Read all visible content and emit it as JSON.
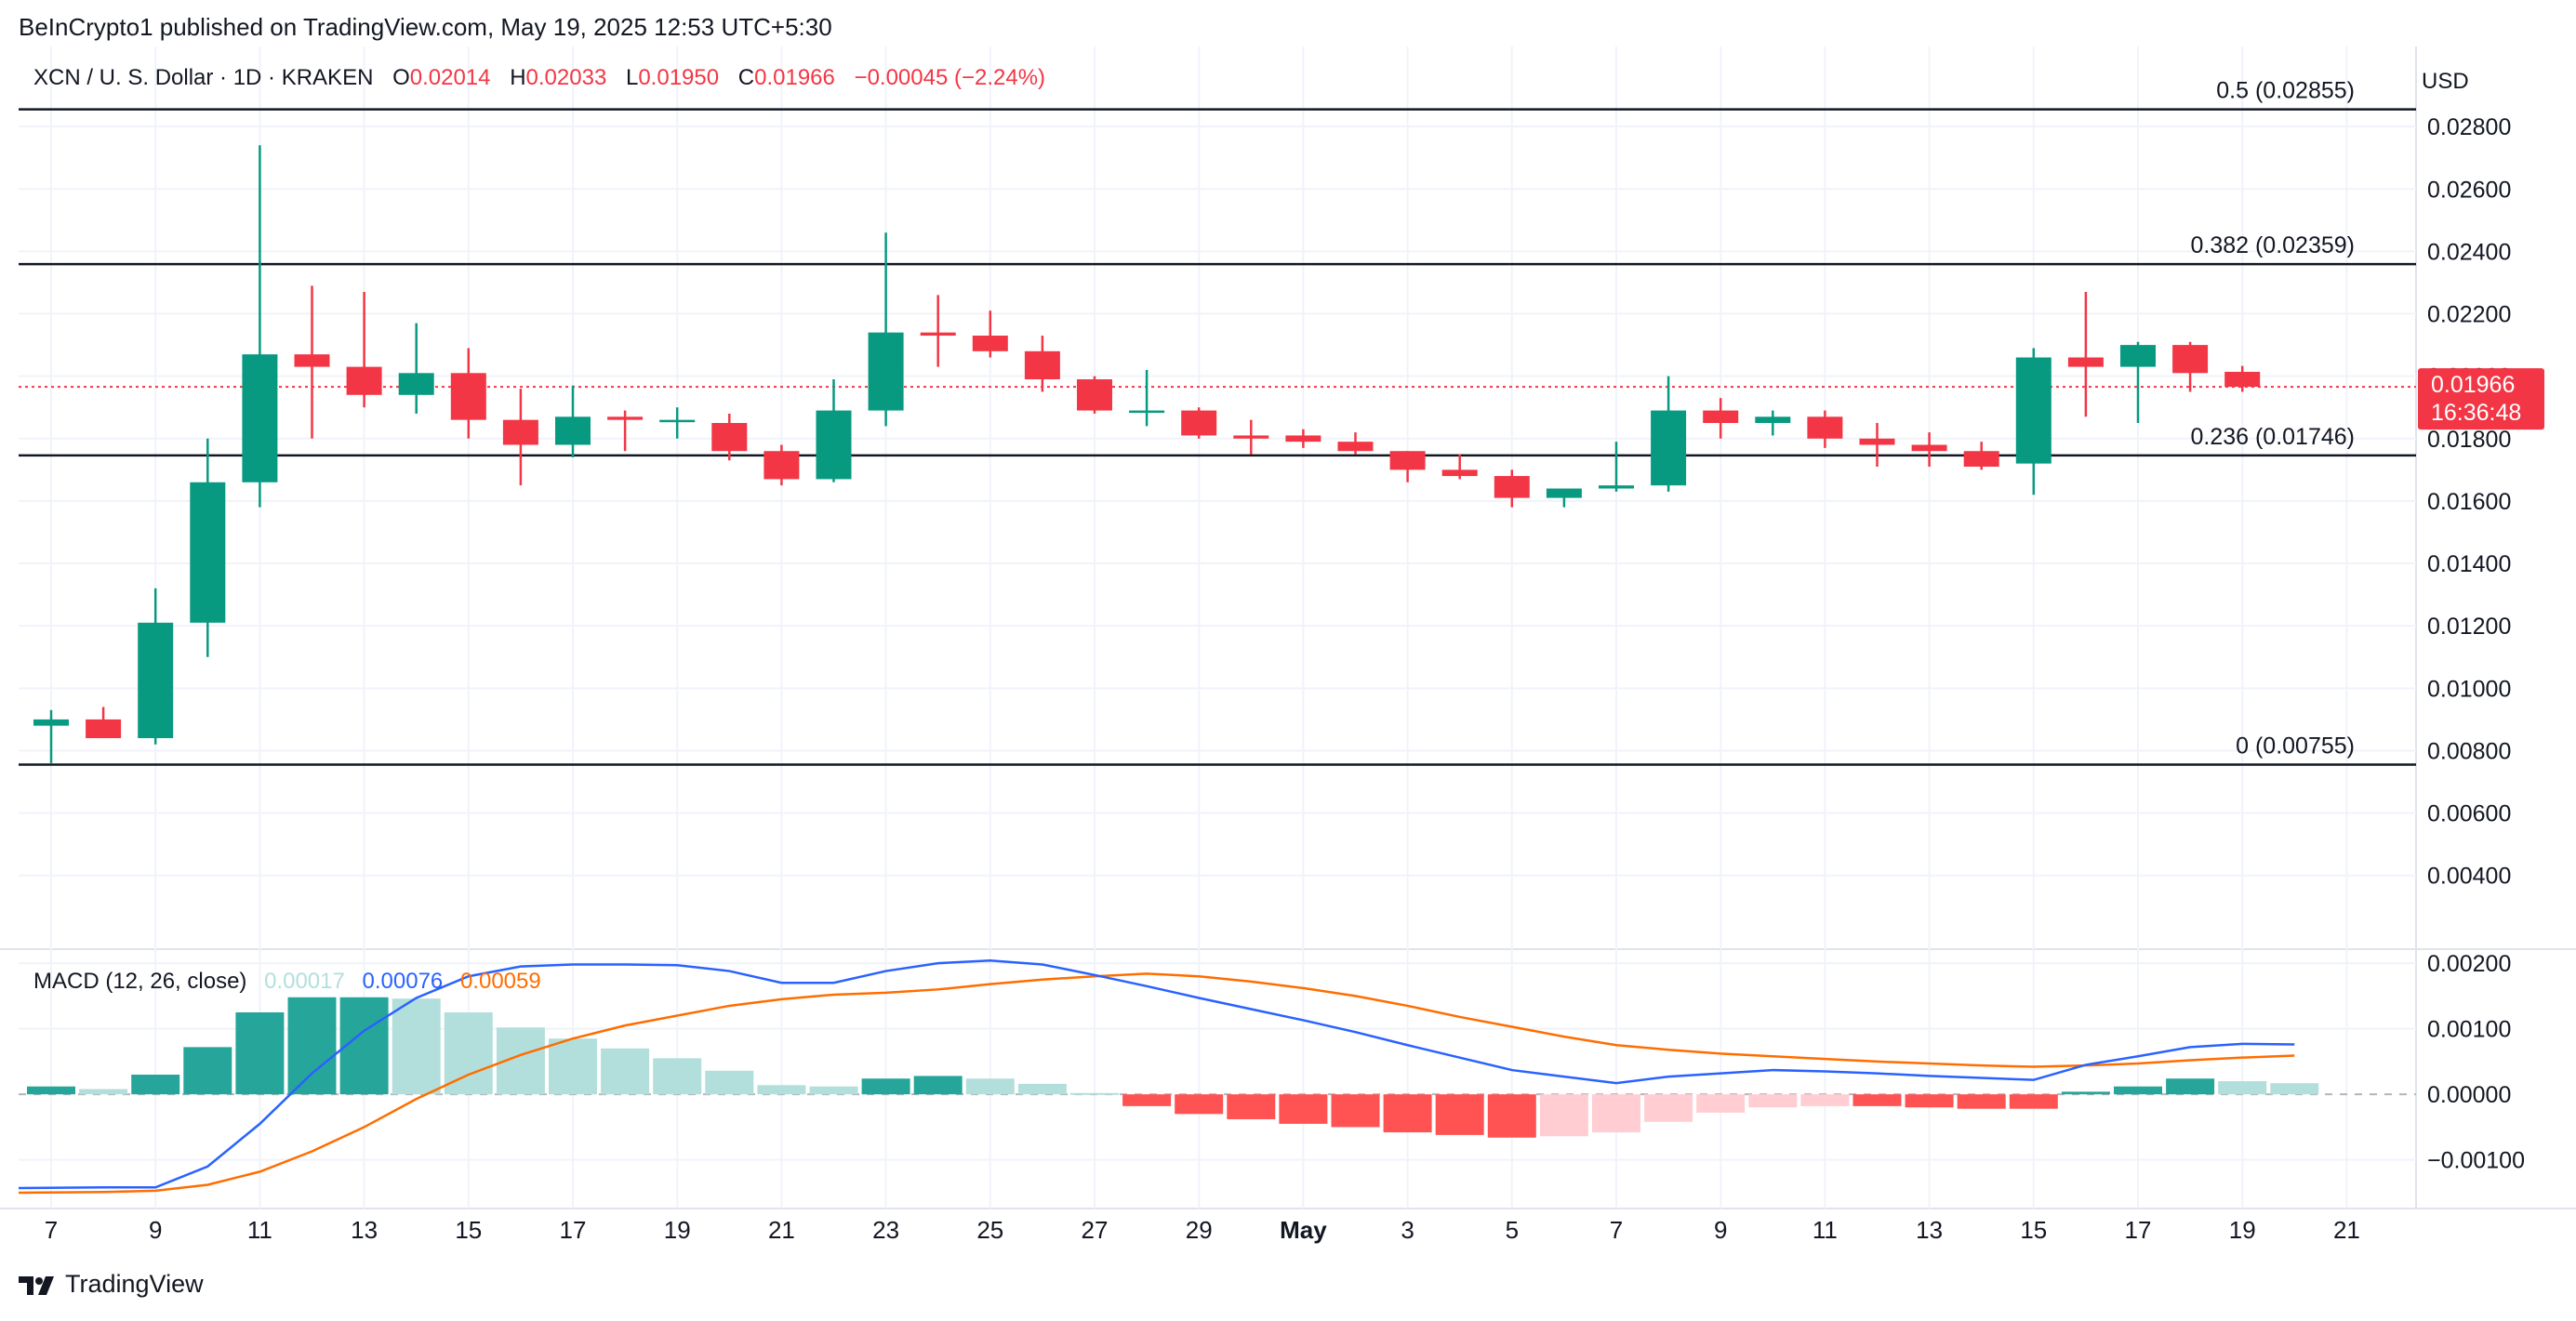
{
  "publisher_line": "BeInCrypto1 published on TradingView.com, May 19, 2025 12:53 UTC+5:30",
  "legend": {
    "symbol": "XCN / U. S. Dollar · 1D · KRAKEN",
    "open_label": "O",
    "open": "0.02014",
    "high_label": "H",
    "high": "0.02033",
    "low_label": "L",
    "low": "0.01950",
    "close_label": "C",
    "close": "0.01966",
    "change": "−0.00045 (−2.24%)"
  },
  "currency": "USD",
  "price_tag": {
    "price": "0.01966",
    "countdown": "16:36:48"
  },
  "macd_legend": {
    "title": "MACD (12, 26, close)",
    "histogram": "0.00017",
    "macd": "0.00076",
    "signal": "0.00059"
  },
  "brand": "TradingView",
  "colors": {
    "up": "#089981",
    "down": "#f23645",
    "hist_up_strong": "#26a69a",
    "hist_up_weak": "#b2dfdb",
    "hist_down_strong": "#ff5252",
    "hist_down_weak": "#ffcdd2",
    "macd": "#2962ff",
    "signal": "#ff6d00"
  },
  "icons": [
    "tradingview-logo-icon"
  ],
  "chart_data": [
    {
      "type": "candlestick",
      "x_tick_labels": [
        "7",
        "9",
        "11",
        "13",
        "15",
        "17",
        "19",
        "21",
        "23",
        "25",
        "27",
        "29",
        "May",
        "3",
        "5",
        "7",
        "9",
        "11",
        "13",
        "15",
        "17",
        "19",
        "21"
      ],
      "price_ticks": [
        "0.02800",
        "0.02600",
        "0.02400",
        "0.02200",
        "0.02000",
        "0.01800",
        "0.01600",
        "0.01400",
        "0.01200",
        "0.01000",
        "0.00800",
        "0.00600",
        "0.00400"
      ],
      "ylim": [
        0.0028,
        0.0286
      ],
      "fib_levels": [
        {
          "label": "0.5 (0.02855)",
          "value": 0.02855
        },
        {
          "label": "0.382 (0.02359)",
          "value": 0.02359
        },
        {
          "label": "0.236 (0.01746)",
          "value": 0.01746
        },
        {
          "label": "0 (0.00755)",
          "value": 0.00755
        }
      ],
      "last_price": 0.01966,
      "candles": [
        {
          "date": "Apr 7",
          "o": 0.0088,
          "h": 0.0093,
          "l": 0.0076,
          "c": 0.009
        },
        {
          "date": "Apr 8",
          "o": 0.009,
          "h": 0.0094,
          "l": 0.0084,
          "c": 0.0084
        },
        {
          "date": "Apr 9",
          "o": 0.0084,
          "h": 0.0132,
          "l": 0.0082,
          "c": 0.0121
        },
        {
          "date": "Apr 10",
          "o": 0.0121,
          "h": 0.018,
          "l": 0.011,
          "c": 0.0166
        },
        {
          "date": "Apr 11",
          "o": 0.0166,
          "h": 0.0274,
          "l": 0.0158,
          "c": 0.0207
        },
        {
          "date": "Apr 12",
          "o": 0.0207,
          "h": 0.0229,
          "l": 0.018,
          "c": 0.0203
        },
        {
          "date": "Apr 13",
          "o": 0.0203,
          "h": 0.0227,
          "l": 0.019,
          "c": 0.0194
        },
        {
          "date": "Apr 14",
          "o": 0.0194,
          "h": 0.0217,
          "l": 0.0188,
          "c": 0.0201
        },
        {
          "date": "Apr 15",
          "o": 0.0201,
          "h": 0.0209,
          "l": 0.018,
          "c": 0.0186
        },
        {
          "date": "Apr 16",
          "o": 0.0186,
          "h": 0.0196,
          "l": 0.0165,
          "c": 0.0178
        },
        {
          "date": "Apr 17",
          "o": 0.0178,
          "h": 0.0197,
          "l": 0.0174,
          "c": 0.0187
        },
        {
          "date": "Apr 18",
          "o": 0.0187,
          "h": 0.0189,
          "l": 0.0176,
          "c": 0.0186
        },
        {
          "date": "Apr 19",
          "o": 0.0186,
          "h": 0.019,
          "l": 0.018,
          "c": 0.0186
        },
        {
          "date": "Apr 20",
          "o": 0.0185,
          "h": 0.0188,
          "l": 0.0173,
          "c": 0.0176
        },
        {
          "date": "Apr 21",
          "o": 0.0176,
          "h": 0.0178,
          "l": 0.0165,
          "c": 0.0167
        },
        {
          "date": "Apr 22",
          "o": 0.0167,
          "h": 0.0199,
          "l": 0.0166,
          "c": 0.0189
        },
        {
          "date": "Apr 23",
          "o": 0.0189,
          "h": 0.0246,
          "l": 0.0184,
          "c": 0.0214
        },
        {
          "date": "Apr 24",
          "o": 0.0214,
          "h": 0.0226,
          "l": 0.0203,
          "c": 0.0213
        },
        {
          "date": "Apr 25",
          "o": 0.0213,
          "h": 0.0221,
          "l": 0.0206,
          "c": 0.0208
        },
        {
          "date": "Apr 26",
          "o": 0.0208,
          "h": 0.0213,
          "l": 0.0195,
          "c": 0.0199
        },
        {
          "date": "Apr 27",
          "o": 0.0199,
          "h": 0.02,
          "l": 0.0188,
          "c": 0.0189
        },
        {
          "date": "Apr 28",
          "o": 0.0189,
          "h": 0.0202,
          "l": 0.0184,
          "c": 0.0189
        },
        {
          "date": "Apr 29",
          "o": 0.0189,
          "h": 0.019,
          "l": 0.018,
          "c": 0.0181
        },
        {
          "date": "Apr 30",
          "o": 0.0181,
          "h": 0.0186,
          "l": 0.0175,
          "c": 0.018
        },
        {
          "date": "May 1",
          "o": 0.0181,
          "h": 0.0183,
          "l": 0.0177,
          "c": 0.0179
        },
        {
          "date": "May 2",
          "o": 0.0179,
          "h": 0.0182,
          "l": 0.0175,
          "c": 0.0176
        },
        {
          "date": "May 3",
          "o": 0.0176,
          "h": 0.0176,
          "l": 0.0166,
          "c": 0.017
        },
        {
          "date": "May 4",
          "o": 0.017,
          "h": 0.0175,
          "l": 0.0167,
          "c": 0.0168
        },
        {
          "date": "May 5",
          "o": 0.0168,
          "h": 0.017,
          "l": 0.0158,
          "c": 0.0161
        },
        {
          "date": "May 6",
          "o": 0.0161,
          "h": 0.0164,
          "l": 0.0158,
          "c": 0.0164
        },
        {
          "date": "May 7",
          "o": 0.0164,
          "h": 0.0179,
          "l": 0.0163,
          "c": 0.0165
        },
        {
          "date": "May 8",
          "o": 0.0165,
          "h": 0.02,
          "l": 0.0163,
          "c": 0.0189
        },
        {
          "date": "May 9",
          "o": 0.0189,
          "h": 0.0193,
          "l": 0.018,
          "c": 0.0185
        },
        {
          "date": "May 10",
          "o": 0.0185,
          "h": 0.0189,
          "l": 0.0181,
          "c": 0.0187
        },
        {
          "date": "May 11",
          "o": 0.0187,
          "h": 0.0189,
          "l": 0.0177,
          "c": 0.018
        },
        {
          "date": "May 12",
          "o": 0.018,
          "h": 0.0185,
          "l": 0.0171,
          "c": 0.0178
        },
        {
          "date": "May 13",
          "o": 0.0178,
          "h": 0.0182,
          "l": 0.0171,
          "c": 0.0176
        },
        {
          "date": "May 14",
          "o": 0.0176,
          "h": 0.0179,
          "l": 0.017,
          "c": 0.0171
        },
        {
          "date": "May 15",
          "o": 0.0172,
          "h": 0.0209,
          "l": 0.0162,
          "c": 0.0206
        },
        {
          "date": "May 16",
          "o": 0.0206,
          "h": 0.0227,
          "l": 0.0187,
          "c": 0.0203
        },
        {
          "date": "May 17",
          "o": 0.0203,
          "h": 0.0211,
          "l": 0.0185,
          "c": 0.021
        },
        {
          "date": "May 18",
          "o": 0.021,
          "h": 0.0211,
          "l": 0.0195,
          "c": 0.0201
        },
        {
          "date": "May 19",
          "o": 0.02014,
          "h": 0.02033,
          "l": 0.0195,
          "c": 0.01966
        }
      ]
    },
    {
      "type": "bar",
      "title": "MACD (12, 26, close)",
      "tick_labels": [
        "0.00200",
        "0.00100",
        "0.00000",
        "−0.00100"
      ],
      "ylim": [
        -0.0016,
        0.0022
      ],
      "histogram": [
        0.00012,
        8e-05,
        0.0003,
        0.00072,
        0.00125,
        0.00148,
        0.00148,
        0.00146,
        0.00125,
        0.00102,
        0.00085,
        0.0007,
        0.00055,
        0.00036,
        0.00014,
        0.00012,
        0.00024,
        0.00028,
        0.00024,
        0.00016,
        2e-05,
        -0.00018,
        -0.0003,
        -0.00038,
        -0.00045,
        -0.0005,
        -0.00058,
        -0.00062,
        -0.00066,
        -0.00064,
        -0.00058,
        -0.00042,
        -0.00028,
        -0.0002,
        -0.00018,
        -0.00018,
        -0.0002,
        -0.00022,
        -0.00022,
        4e-05,
        0.00012,
        0.00024,
        0.0002,
        0.00017
      ],
      "macd": [
        -0.00143,
        -0.00142,
        -0.00142,
        -0.0011,
        -0.00045,
        0.00032,
        0.00097,
        0.00147,
        0.0018,
        0.00195,
        0.00198,
        0.00198,
        0.00197,
        0.00188,
        0.0017,
        0.0017,
        0.00188,
        0.002,
        0.00204,
        0.00198,
        0.00182,
        0.00165,
        0.00147,
        0.0013,
        0.00113,
        0.00095,
        0.00075,
        0.00056,
        0.00037,
        0.00027,
        0.00017,
        0.00027,
        0.00032,
        0.00037,
        0.00035,
        0.00032,
        0.00028,
        0.00025,
        0.00022,
        0.00045,
        0.00058,
        0.00072,
        0.00077,
        0.00076
      ],
      "signal": [
        -0.0015,
        -0.00149,
        -0.00147,
        -0.00138,
        -0.00118,
        -0.00087,
        -0.0005,
        -7e-05,
        0.0003,
        0.0006,
        0.00085,
        0.00105,
        0.0012,
        0.00135,
        0.00145,
        0.00152,
        0.00155,
        0.0016,
        0.00168,
        0.00175,
        0.0018,
        0.00184,
        0.0018,
        0.00172,
        0.00162,
        0.0015,
        0.00135,
        0.00118,
        0.00103,
        0.00088,
        0.00075,
        0.00068,
        0.00062,
        0.00058,
        0.00054,
        0.0005,
        0.00047,
        0.00044,
        0.00042,
        0.00044,
        0.00047,
        0.00052,
        0.00056,
        0.00059
      ]
    }
  ]
}
